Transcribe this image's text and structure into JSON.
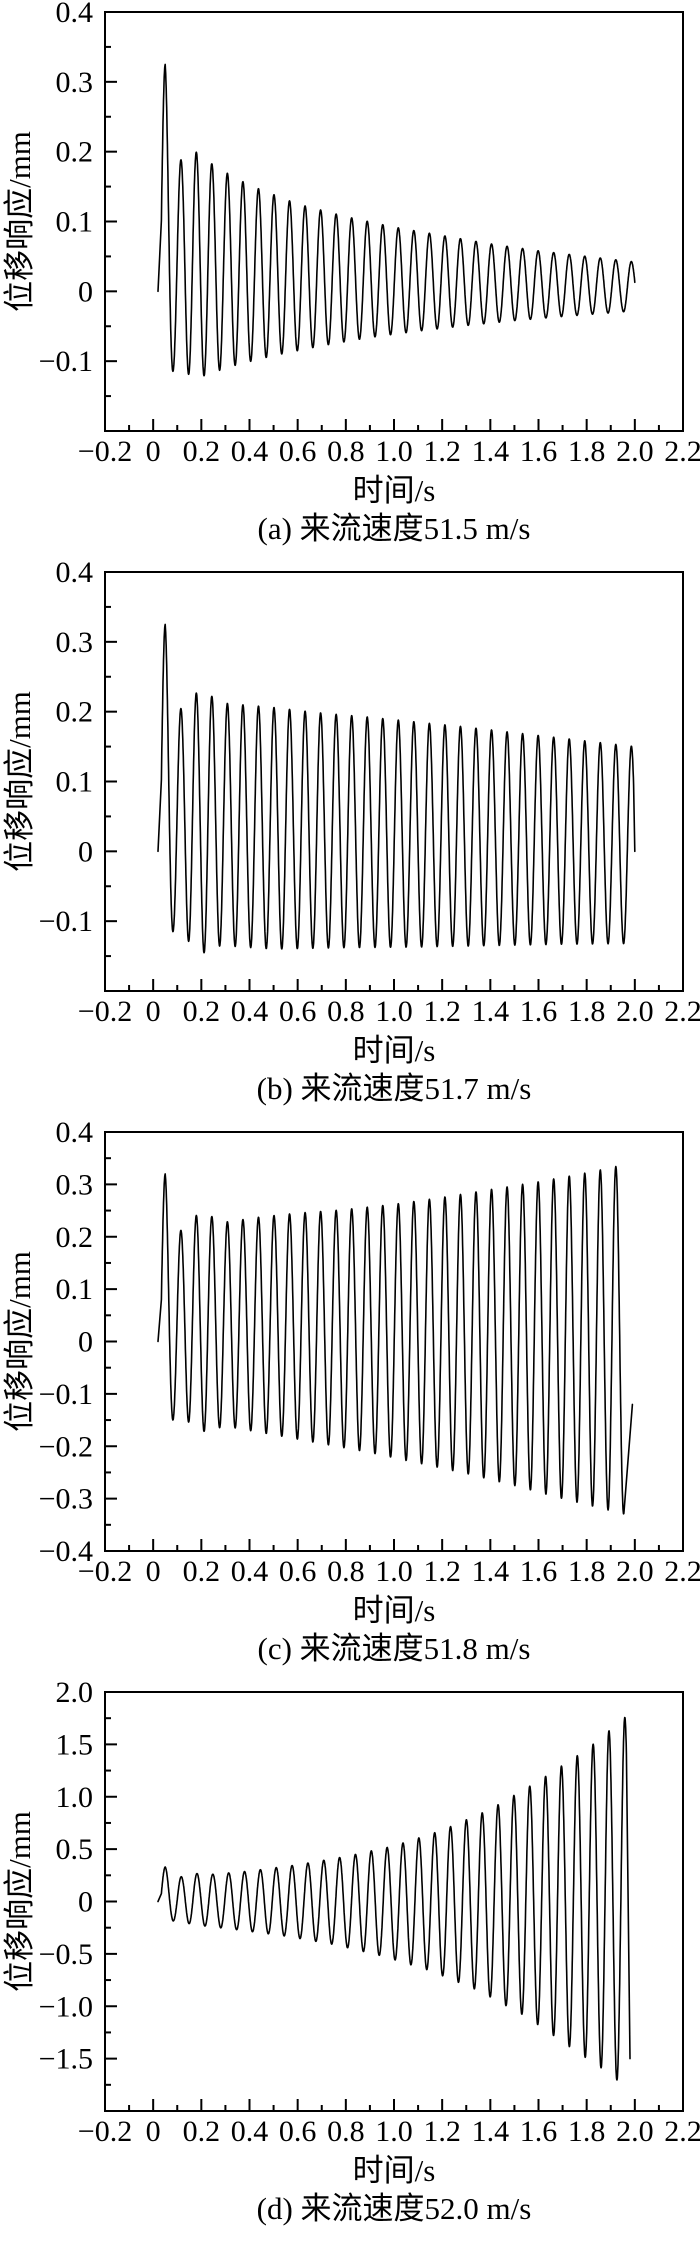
{
  "chart_data": [
    {
      "id": "a",
      "type": "line",
      "caption": "(a) 来流速度51.5 m/s",
      "xlabel": "时间/s",
      "ylabel": "位移响应/mm",
      "xlim": [
        -0.2,
        2.2
      ],
      "ylim": [
        -0.2,
        0.4
      ],
      "grid": false,
      "legend": "none",
      "line_color": "#000000",
      "xticks": {
        "values": [
          -0.2,
          0,
          0.2,
          0.4,
          0.6,
          0.8,
          1.0,
          1.2,
          1.4,
          1.6,
          1.8,
          2.0,
          2.2
        ],
        "labels": [
          "−0.2",
          "0",
          "0.2",
          "0.4",
          "0.6",
          "0.8",
          "1.0",
          "1.2",
          "1.4",
          "1.6",
          "1.8",
          "2.0",
          "2.2"
        ],
        "minor_step": 0.1
      },
      "yticks": {
        "label_values": [
          0.4,
          0.3,
          0.2,
          0.1,
          0,
          -0.1
        ],
        "labels": [
          "0.4",
          "0.3",
          "0.2",
          "0.1",
          "0",
          "−0.1"
        ],
        "minor_step": 0.05
      },
      "signal": {
        "frequency_hz": 15.5,
        "start": [
          0.02,
          0
        ],
        "t0": 0.034,
        "t_end": 2.0,
        "envelope_top": [
          [
            0.05,
            0.325
          ],
          [
            0.085,
            0.155
          ],
          [
            0.13,
            0.205
          ],
          [
            0.19,
            0.198
          ],
          [
            0.26,
            0.178
          ],
          [
            0.4,
            0.152
          ],
          [
            0.6,
            0.125
          ],
          [
            0.8,
            0.107
          ],
          [
            1.0,
            0.092
          ],
          [
            1.2,
            0.08
          ],
          [
            1.4,
            0.068
          ],
          [
            1.6,
            0.058
          ],
          [
            1.8,
            0.05
          ],
          [
            2.0,
            0.042
          ]
        ],
        "envelope_bottom": [
          [
            0.068,
            -0.122
          ],
          [
            0.11,
            -0.1
          ],
          [
            0.165,
            -0.128
          ],
          [
            0.23,
            -0.118
          ],
          [
            0.35,
            -0.105
          ],
          [
            0.5,
            -0.092
          ],
          [
            0.7,
            -0.078
          ],
          [
            0.9,
            -0.066
          ],
          [
            1.1,
            -0.057
          ],
          [
            1.3,
            -0.049
          ],
          [
            1.5,
            -0.042
          ],
          [
            1.7,
            -0.036
          ],
          [
            1.85,
            -0.032
          ],
          [
            2.0,
            -0.028
          ]
        ],
        "tail": []
      }
    },
    {
      "id": "b",
      "type": "line",
      "caption": "(b) 来流速度51.7 m/s",
      "xlabel": "时间/s",
      "ylabel": "位移响应/mm",
      "xlim": [
        -0.2,
        2.2
      ],
      "ylim": [
        -0.2,
        0.4
      ],
      "grid": false,
      "legend": "none",
      "line_color": "#000000",
      "xticks": {
        "values": [
          -0.2,
          0,
          0.2,
          0.4,
          0.6,
          0.8,
          1.0,
          1.2,
          1.4,
          1.6,
          1.8,
          2.0,
          2.2
        ],
        "labels": [
          "−0.2",
          "0",
          "0.2",
          "0.4",
          "0.6",
          "0.8",
          "1.0",
          "1.2",
          "1.4",
          "1.6",
          "1.8",
          "2.0",
          "2.2"
        ],
        "minor_step": 0.1
      },
      "yticks": {
        "label_values": [
          0.4,
          0.3,
          0.2,
          0.1,
          0,
          -0.1
        ],
        "labels": [
          "0.4",
          "0.3",
          "0.2",
          "0.1",
          "0",
          "−0.1"
        ],
        "minor_step": 0.05
      },
      "signal": {
        "frequency_hz": 15.5,
        "start": [
          0.02,
          0
        ],
        "t0": 0.034,
        "t_end": 1.995,
        "envelope_top": [
          [
            0.05,
            0.325
          ],
          [
            0.085,
            0.18
          ],
          [
            0.14,
            0.225
          ],
          [
            0.21,
            0.228
          ],
          [
            0.3,
            0.212
          ],
          [
            0.5,
            0.206
          ],
          [
            0.7,
            0.198
          ],
          [
            0.9,
            0.192
          ],
          [
            1.1,
            0.185
          ],
          [
            1.3,
            0.178
          ],
          [
            1.5,
            0.17
          ],
          [
            1.7,
            0.162
          ],
          [
            1.85,
            0.156
          ],
          [
            2.0,
            0.15
          ]
        ],
        "envelope_bottom": [
          [
            0.068,
            -0.12
          ],
          [
            0.11,
            -0.105
          ],
          [
            0.18,
            -0.15
          ],
          [
            0.28,
            -0.135
          ],
          [
            0.5,
            -0.14
          ],
          [
            0.8,
            -0.138
          ],
          [
            1.1,
            -0.137
          ],
          [
            1.4,
            -0.135
          ],
          [
            1.7,
            -0.133
          ],
          [
            2.0,
            -0.132
          ]
        ],
        "tail": [
          [
            2.0,
            0.0
          ]
        ]
      }
    },
    {
      "id": "c",
      "type": "line",
      "caption": "(c) 来流速度51.8 m/s",
      "xlabel": "时间/s",
      "ylabel": "位移响应/mm",
      "xlim": [
        -0.2,
        2.2
      ],
      "ylim": [
        -0.4,
        0.4
      ],
      "grid": false,
      "legend": "none",
      "line_color": "#000000",
      "xticks": {
        "values": [
          -0.2,
          0,
          0.2,
          0.4,
          0.6,
          0.8,
          1.0,
          1.2,
          1.4,
          1.6,
          1.8,
          2.0,
          2.2
        ],
        "labels": [
          "−0.2",
          "0",
          "0.2",
          "0.4",
          "0.6",
          "0.8",
          "1.0",
          "1.2",
          "1.4",
          "1.6",
          "1.8",
          "2.0",
          "2.2"
        ],
        "minor_step": 0.1
      },
      "yticks": {
        "label_values": [
          0.4,
          0.3,
          0.2,
          0.1,
          0,
          -0.1,
          -0.2,
          -0.3,
          -0.4
        ],
        "labels": [
          "0.4",
          "0.3",
          "0.2",
          "0.1",
          "0",
          "−0.1",
          "−0.2",
          "−0.3",
          "−0.4"
        ],
        "minor_step": 0.05
      },
      "signal": {
        "frequency_hz": 15.5,
        "start": [
          0.02,
          0
        ],
        "t0": 0.034,
        "t_end": 1.955,
        "envelope_top": [
          [
            0.05,
            0.32
          ],
          [
            0.085,
            0.185
          ],
          [
            0.14,
            0.235
          ],
          [
            0.21,
            0.245
          ],
          [
            0.3,
            0.228
          ],
          [
            0.45,
            0.238
          ],
          [
            0.6,
            0.245
          ],
          [
            0.8,
            0.252
          ],
          [
            1.0,
            0.262
          ],
          [
            1.2,
            0.275
          ],
          [
            1.4,
            0.29
          ],
          [
            1.6,
            0.305
          ],
          [
            1.8,
            0.322
          ],
          [
            1.96,
            0.338
          ]
        ],
        "envelope_bottom": [
          [
            0.068,
            -0.16
          ],
          [
            0.11,
            -0.13
          ],
          [
            0.18,
            -0.175
          ],
          [
            0.3,
            -0.162
          ],
          [
            0.5,
            -0.178
          ],
          [
            0.7,
            -0.195
          ],
          [
            0.9,
            -0.212
          ],
          [
            1.1,
            -0.232
          ],
          [
            1.3,
            -0.252
          ],
          [
            1.5,
            -0.275
          ],
          [
            1.7,
            -0.3
          ],
          [
            1.96,
            -0.33
          ]
        ],
        "tail": [
          [
            1.99,
            -0.12
          ]
        ]
      }
    },
    {
      "id": "d",
      "type": "line",
      "caption": "(d) 来流速度52.0 m/s",
      "xlabel": "时间/s",
      "ylabel": "位移响应/mm",
      "xlim": [
        -0.2,
        2.2
      ],
      "ylim": [
        -2.0,
        2.0
      ],
      "grid": false,
      "legend": "none",
      "line_color": "#000000",
      "xticks": {
        "values": [
          -0.2,
          0,
          0.2,
          0.4,
          0.6,
          0.8,
          1.0,
          1.2,
          1.4,
          1.6,
          1.8,
          2.0,
          2.2
        ],
        "labels": [
          "−0.2",
          "0",
          "0.2",
          "0.4",
          "0.6",
          "0.8",
          "1.0",
          "1.2",
          "1.4",
          "1.6",
          "1.8",
          "2.0",
          "2.2"
        ],
        "minor_step": 0.1
      },
      "yticks": {
        "label_values": [
          2.0,
          1.5,
          1.0,
          0.5,
          0,
          -0.5,
          -1.0,
          -1.5
        ],
        "labels": [
          "2.0",
          "1.5",
          "1.0",
          "0.5",
          "0",
          "−0.5",
          "−1.0",
          "−1.5"
        ],
        "minor_step": 0.25
      },
      "signal": {
        "frequency_hz": 15.2,
        "start": [
          0.02,
          0
        ],
        "t0": 0.034,
        "t_end": 1.965,
        "envelope_top": [
          [
            0.05,
            0.33
          ],
          [
            0.09,
            0.21
          ],
          [
            0.15,
            0.27
          ],
          [
            0.25,
            0.26
          ],
          [
            0.4,
            0.29
          ],
          [
            0.6,
            0.35
          ],
          [
            0.8,
            0.43
          ],
          [
            1.0,
            0.53
          ],
          [
            1.2,
            0.68
          ],
          [
            1.4,
            0.88
          ],
          [
            1.6,
            1.15
          ],
          [
            1.8,
            1.45
          ],
          [
            1.96,
            1.76
          ]
        ],
        "envelope_bottom": [
          [
            0.07,
            -0.18
          ],
          [
            0.12,
            -0.2
          ],
          [
            0.2,
            -0.23
          ],
          [
            0.35,
            -0.27
          ],
          [
            0.55,
            -0.33
          ],
          [
            0.75,
            -0.41
          ],
          [
            0.95,
            -0.52
          ],
          [
            1.15,
            -0.66
          ],
          [
            1.35,
            -0.85
          ],
          [
            1.55,
            -1.1
          ],
          [
            1.75,
            -1.42
          ],
          [
            1.9,
            -1.65
          ],
          [
            1.97,
            -1.8
          ]
        ],
        "tail": [
          [
            1.98,
            -1.5
          ]
        ]
      }
    }
  ]
}
